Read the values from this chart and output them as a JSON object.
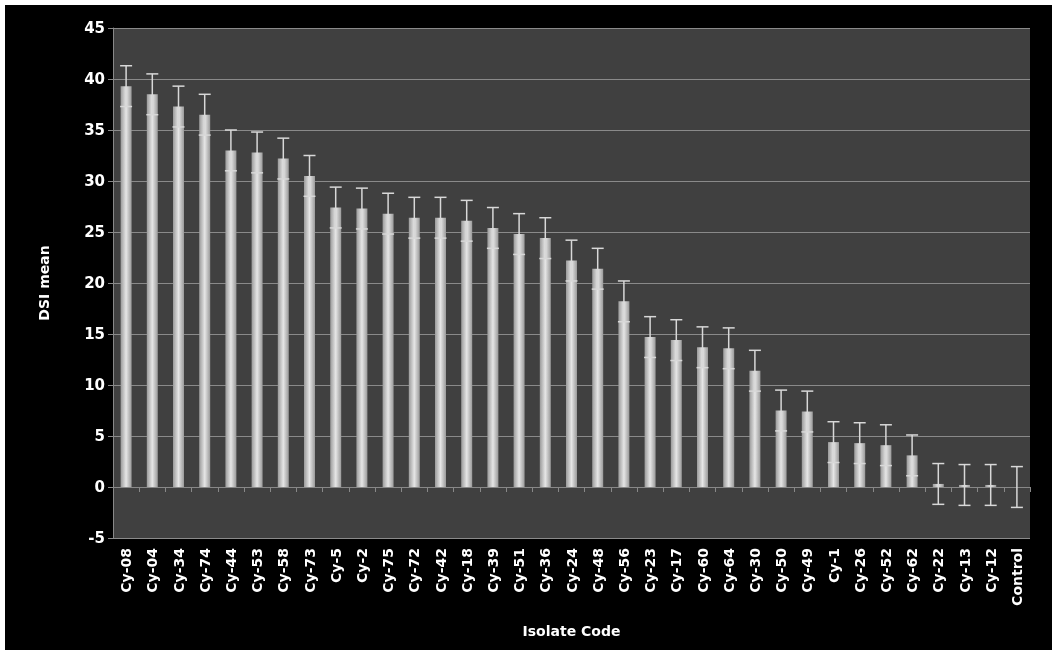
{
  "chart_data": {
    "type": "bar",
    "xlabel": "Isolate Code",
    "ylabel": "DSI mean",
    "categories": [
      "Cy-08",
      "Cy-04",
      "Cy-34",
      "Cy-74",
      "Cy-44",
      "Cy-53",
      "Cy-58",
      "Cy-73",
      "Cy-5",
      "Cy-2",
      "Cy-75",
      "Cy-72",
      "Cy-42",
      "Cy-18",
      "Cy-39",
      "Cy-51",
      "Cy-36",
      "Cy-24",
      "Cy-48",
      "Cy-56",
      "Cy-23",
      "Cy-17",
      "Cy-60",
      "Cy-64",
      "Cy-30",
      "Cy-50",
      "Cy-49",
      "Cy-1",
      "Cy-26",
      "Cy-52",
      "Cy-62",
      "Cy-22",
      "Cy-13",
      "Cy-12",
      "Control"
    ],
    "values": [
      39.3,
      38.5,
      37.3,
      36.5,
      33.0,
      32.8,
      32.2,
      30.5,
      27.4,
      27.3,
      26.8,
      26.4,
      26.4,
      26.1,
      25.4,
      24.8,
      24.4,
      22.2,
      21.4,
      18.2,
      14.7,
      14.4,
      13.7,
      13.6,
      11.4,
      7.5,
      7.4,
      4.4,
      4.3,
      4.1,
      3.1,
      0.3,
      0.2,
      0.2,
      0
    ],
    "errors": [
      2,
      2,
      2,
      2,
      2,
      2,
      2,
      2,
      2,
      2,
      2,
      2,
      2,
      2,
      2,
      2,
      2,
      2,
      2,
      2,
      2,
      2,
      2,
      2,
      2,
      2,
      2,
      2,
      2,
      2,
      2,
      2,
      2,
      2,
      2
    ],
    "color": "#e6e6e6",
    "ylim": [
      -5,
      45
    ],
    "yticks": [
      -5,
      0,
      5,
      10,
      15,
      20,
      25,
      30,
      35,
      40,
      45
    ],
    "grid": "y"
  }
}
